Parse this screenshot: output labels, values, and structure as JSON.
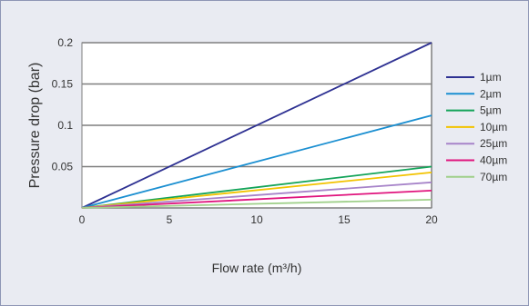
{
  "chart_data": {
    "type": "line",
    "title": "",
    "xlabel": "Flow rate (m³/h)",
    "ylabel": "Pressure drop (bar)",
    "xlim": [
      0,
      20
    ],
    "ylim": [
      0,
      0.2
    ],
    "x_ticks": [
      0,
      5,
      10,
      15,
      20
    ],
    "x_tick_labels": [
      "0",
      "5",
      "10",
      "15",
      "20"
    ],
    "y_ticks": [
      0.05,
      0.1,
      0.15,
      0.2
    ],
    "y_tick_labels": [
      "0.05",
      "0.1",
      "0.15",
      "0.2"
    ],
    "grid": "horizontal",
    "legend_position": "right",
    "x": [
      0,
      20
    ],
    "series": [
      {
        "name": "1µm",
        "color": "#2e3192",
        "values": [
          0,
          0.2
        ]
      },
      {
        "name": "2µm",
        "color": "#1b8fd1",
        "values": [
          0,
          0.112
        ]
      },
      {
        "name": "5µm",
        "color": "#14a45a",
        "values": [
          0,
          0.05
        ]
      },
      {
        "name": "10µm",
        "color": "#f2c300",
        "values": [
          0,
          0.043
        ]
      },
      {
        "name": "25µm",
        "color": "#a784c9",
        "values": [
          0,
          0.031
        ]
      },
      {
        "name": "40µm",
        "color": "#e0157e",
        "values": [
          0,
          0.021
        ]
      },
      {
        "name": "70µm",
        "color": "#9fd08a",
        "values": [
          0,
          0.01
        ]
      }
    ]
  },
  "style": {
    "panel_background": "#e9ebf2",
    "panel_border": "#8e96b5",
    "plot_background": "#ffffff",
    "grid_color": "#7f7f7f",
    "text_color": "#333333"
  }
}
